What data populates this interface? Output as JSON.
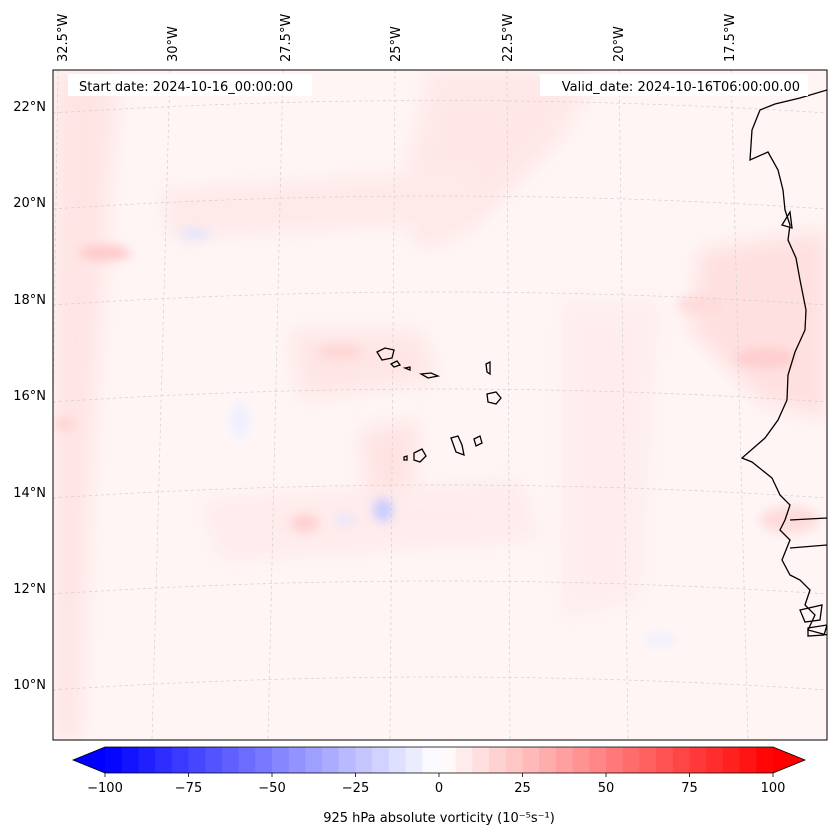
{
  "header": {
    "start_date": "Start date: 2024-10-16_00:00:00",
    "valid_date": "Valid_date: 2024-10-16T06:00:00.00"
  },
  "map": {
    "projection": "conic",
    "lon_ticks": [
      "32.5°W",
      "30°W",
      "27.5°W",
      "25°W",
      "22.5°W",
      "20°W",
      "17.5°W"
    ],
    "lat_ticks": [
      "22°N",
      "20°N",
      "18°N",
      "16°N",
      "14°N",
      "12°N",
      "10°N"
    ],
    "region": "Cabo Verde and West African coast",
    "field": "925 hPa absolute vorticity"
  },
  "colorbar": {
    "label": "925 hPa absolute vorticity (10⁻⁵s⁻¹)",
    "ticks": [
      "−100",
      "−75",
      "−50",
      "−25",
      "0",
      "25",
      "50",
      "75",
      "100"
    ],
    "min": -100,
    "max": 100,
    "step": 5,
    "low_color": "#0000ff",
    "mid_color": "#ffffff",
    "high_color": "#ff0000"
  }
}
